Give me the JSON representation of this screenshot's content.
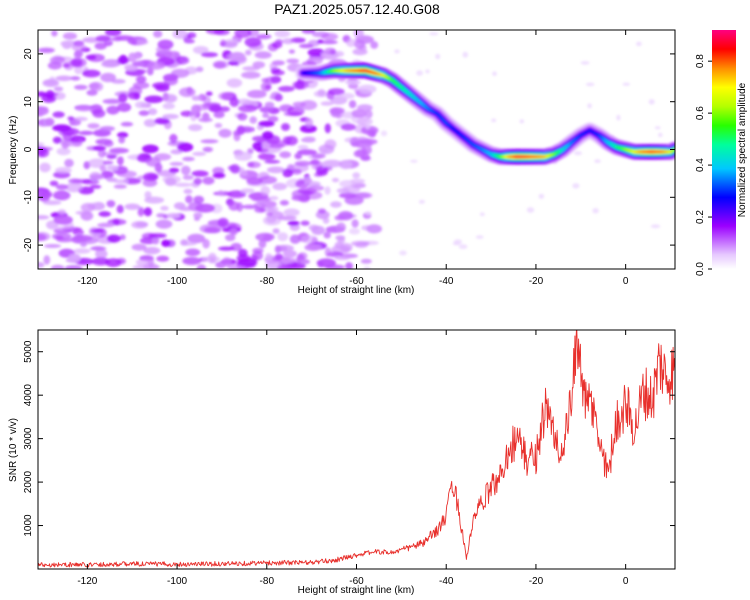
{
  "title": "PAZ1.2025.057.12.40.G08",
  "chart_data": [
    {
      "type": "heatmap",
      "title": "PAZ1.2025.057.12.40.G08",
      "xlabel": "Height of straight line (km)",
      "ylabel": "Frequency (Hz)",
      "xlim": [
        -131,
        11
      ],
      "ylim": [
        -25,
        25
      ],
      "x_ticks": [
        -120,
        -100,
        -80,
        -60,
        -40,
        -20,
        0
      ],
      "y_ticks": [
        -20,
        -10,
        0,
        10,
        20
      ],
      "colorbar": {
        "label": "Normalized spectral amplitude",
        "range": [
          0,
          0.92
        ],
        "ticks": [
          0.0,
          0.2,
          0.4,
          0.6,
          0.8
        ],
        "tick_labels": [
          "0.0",
          "0.2",
          "0.4",
          "0.6",
          "0.8"
        ],
        "colormap": [
          "#ffffff",
          "#a000ff",
          "#0000ff",
          "#00c8ff",
          "#00ff80",
          "#80ff00",
          "#ffff00",
          "#ff8000",
          "#ff0000",
          "#ff0080"
        ]
      },
      "ridge": {
        "x": [
          -72,
          -68,
          -65,
          -62,
          -58,
          -56,
          -54,
          -52,
          -50,
          -48,
          -46,
          -44,
          -42,
          -40,
          -38,
          -36,
          -34,
          -32,
          -30,
          -28,
          -26,
          -24,
          -22,
          -20,
          -18,
          -16,
          -14,
          -12,
          -10,
          -8,
          -6,
          -4,
          -2,
          0,
          2,
          4,
          6,
          8,
          10,
          11
        ],
        "frequency": [
          16,
          16,
          16.5,
          16.5,
          16.5,
          16,
          15.5,
          14.5,
          13,
          11.5,
          10,
          8.5,
          7.5,
          5.5,
          4,
          2.5,
          1,
          0,
          -1,
          -1.5,
          -1.5,
          -1.5,
          -1.5,
          -1.5,
          -1.5,
          -1,
          0,
          1.5,
          3,
          4,
          3,
          1.5,
          0.5,
          0,
          -0.5,
          -0.5,
          -0.5,
          -0.5,
          -0.5,
          0
        ],
        "amplitude": [
          0.25,
          0.35,
          0.6,
          0.75,
          0.88,
          0.82,
          0.7,
          0.55,
          0.5,
          0.45,
          0.4,
          0.35,
          0.3,
          0.32,
          0.28,
          0.3,
          0.32,
          0.35,
          0.4,
          0.55,
          0.75,
          0.88,
          0.85,
          0.8,
          0.75,
          0.6,
          0.45,
          0.35,
          0.3,
          0.28,
          0.3,
          0.4,
          0.5,
          0.6,
          0.7,
          0.8,
          0.85,
          0.8,
          0.7,
          0.6
        ]
      },
      "noise_region": {
        "x": [
          -131,
          -60
        ],
        "frequency": [
          -25,
          25
        ],
        "amplitude_max": 0.2
      }
    },
    {
      "type": "line",
      "xlabel": "Height of straight line (km)",
      "ylabel": "SNR (10 * v/v)",
      "xlim": [
        -131,
        11
      ],
      "ylim": [
        0,
        5500
      ],
      "x_ticks": [
        -120,
        -100,
        -80,
        -60,
        -40,
        -20,
        0
      ],
      "y_ticks": [
        1000,
        2000,
        3000,
        4000,
        5000
      ],
      "grid": false,
      "color": "#e8302c",
      "series": [
        {
          "x": [
            -131,
            -120,
            -110,
            -100,
            -90,
            -80,
            -70,
            -65,
            -60,
            -56,
            -52,
            -48,
            -45,
            -42,
            -40,
            -38.5,
            -37.5,
            -36.5,
            -35.5,
            -34.5,
            -33.5,
            -32,
            -30,
            -28,
            -26,
            -24,
            -22,
            -20,
            -18,
            -16,
            -14,
            -12,
            -10.5,
            -9,
            -7.5,
            -6,
            -4,
            -2,
            0,
            2,
            4,
            6,
            7.5,
            9,
            11
          ],
          "y": [
            100,
            100,
            120,
            110,
            120,
            140,
            150,
            200,
            320,
            400,
            380,
            500,
            600,
            900,
            1200,
            2050,
            1500,
            900,
            250,
            800,
            1300,
            1500,
            1900,
            2100,
            2800,
            3000,
            2500,
            2600,
            3700,
            3100,
            2600,
            4000,
            5400,
            3700,
            3800,
            3000,
            2200,
            3400,
            3800,
            3200,
            4100,
            3900,
            4800,
            4400,
            4600
          ]
        }
      ]
    }
  ]
}
